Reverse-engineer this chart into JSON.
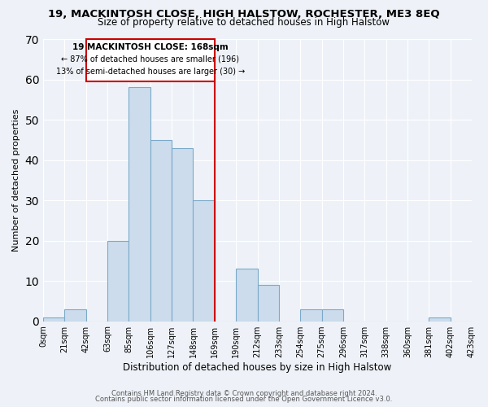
{
  "title": "19, MACKINTOSH CLOSE, HIGH HALSTOW, ROCHESTER, ME3 8EQ",
  "subtitle": "Size of property relative to detached houses in High Halstow",
  "xlabel": "Distribution of detached houses by size in High Halstow",
  "ylabel": "Number of detached properties",
  "bar_color": "#ccdcec",
  "bar_edge_color": "#7aaac8",
  "bg_color": "#eef2f8",
  "grid_color": "#ffffff",
  "bin_labels": [
    "0sqm",
    "21sqm",
    "42sqm",
    "63sqm",
    "85sqm",
    "106sqm",
    "127sqm",
    "148sqm",
    "169sqm",
    "190sqm",
    "212sqm",
    "233sqm",
    "254sqm",
    "275sqm",
    "296sqm",
    "317sqm",
    "338sqm",
    "360sqm",
    "381sqm",
    "402sqm",
    "423sqm"
  ],
  "bar_heights": [
    1,
    3,
    0,
    20,
    58,
    45,
    43,
    30,
    0,
    13,
    9,
    0,
    3,
    3,
    0,
    0,
    0,
    0,
    1,
    0
  ],
  "n_bins": 20,
  "vline_bin": 8,
  "vline_color": "#cc0000",
  "annotation_title": "19 MACKINTOSH CLOSE: 168sqm",
  "annotation_line1": "← 87% of detached houses are smaller (196)",
  "annotation_line2": "13% of semi-detached houses are larger (30) →",
  "annotation_box_color": "#cc0000",
  "ylim": [
    0,
    70
  ],
  "yticks": [
    0,
    10,
    20,
    30,
    40,
    50,
    60,
    70
  ],
  "footer1": "Contains HM Land Registry data © Crown copyright and database right 2024.",
  "footer2": "Contains public sector information licensed under the Open Government Licence v3.0.",
  "title_fontsize": 9.5,
  "subtitle_fontsize": 8.5,
  "xlabel_fontsize": 8.5,
  "ylabel_fontsize": 8,
  "tick_fontsize": 7,
  "footer_fontsize": 6
}
